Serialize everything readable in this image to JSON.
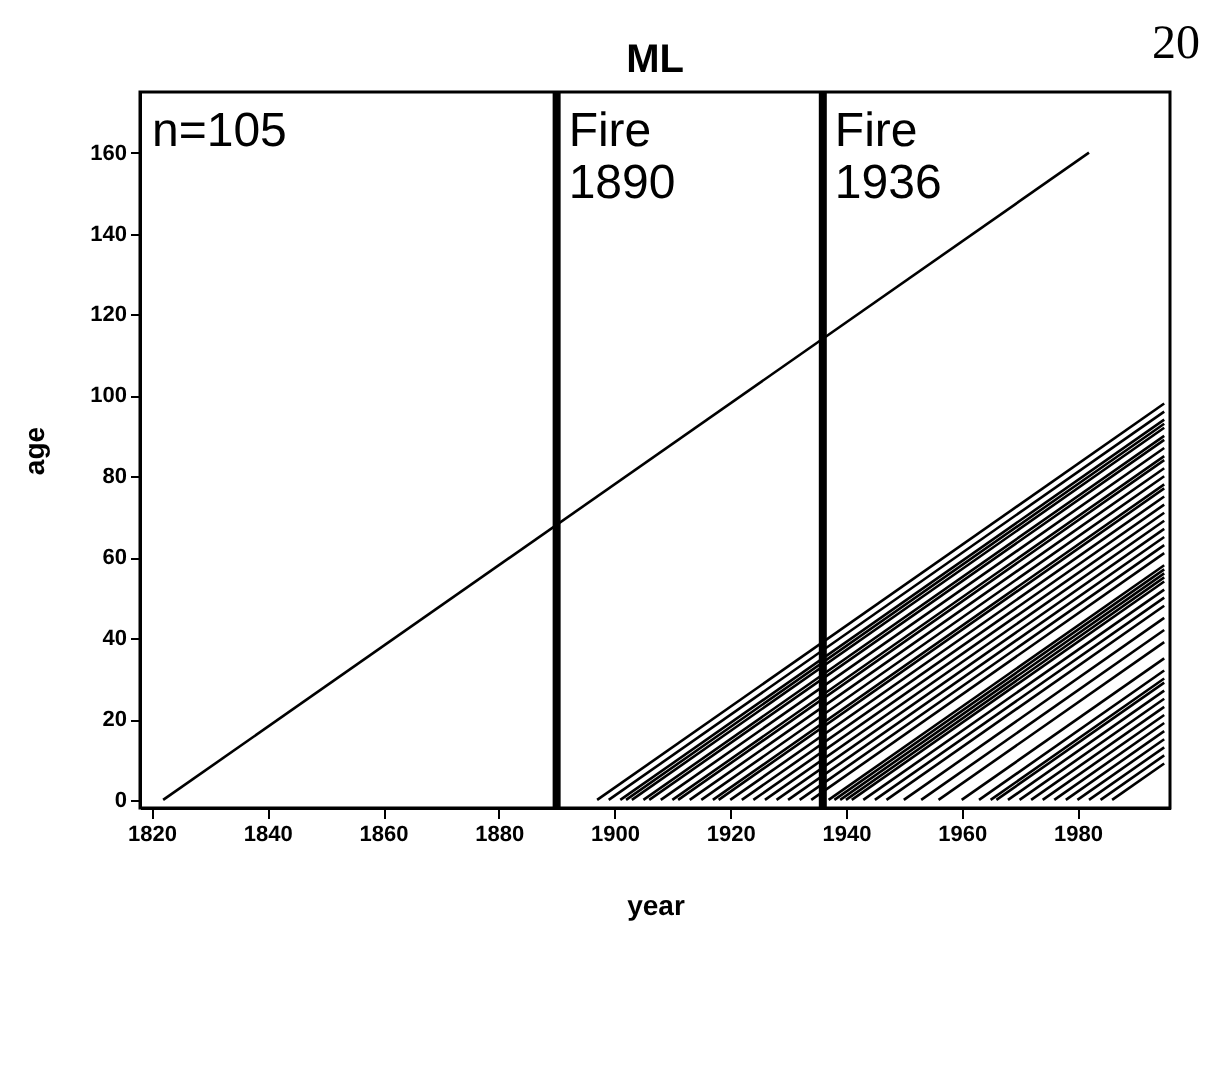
{
  "chart_data": {
    "type": "line",
    "title": "ML",
    "xlabel": "year",
    "ylabel": "age",
    "xlim": [
      1818,
      1996
    ],
    "ylim": [
      -2,
      175
    ],
    "xticks": [
      1820,
      1840,
      1860,
      1880,
      1900,
      1920,
      1940,
      1960,
      1980
    ],
    "yticks": [
      0,
      20,
      40,
      60,
      80,
      100,
      120,
      140,
      160
    ],
    "grid": false,
    "legend": false,
    "marker": "none",
    "line_style": "solid",
    "annotations": [
      "n=105",
      "20"
    ],
    "ref_lines": [
      {
        "axis": "x",
        "value": 1890,
        "label": "Fire 1890",
        "color": "#000000"
      },
      {
        "axis": "x",
        "value": 1936,
        "label": "Fire 1936",
        "color": "#000000"
      }
    ],
    "series": [
      {
        "color": "#000000",
        "x": [
          1822,
          1982
        ],
        "values": [
          0,
          160
        ]
      },
      {
        "color": "#000000",
        "x": [
          1897,
          1995
        ],
        "values": [
          0,
          98
        ]
      },
      {
        "color": "#000000",
        "x": [
          1899,
          1995
        ],
        "values": [
          0,
          96
        ]
      },
      {
        "color": "#000000",
        "x": [
          1901,
          1995
        ],
        "values": [
          0,
          94
        ]
      },
      {
        "color": "#000000",
        "x": [
          1902,
          1995
        ],
        "values": [
          0,
          93
        ]
      },
      {
        "color": "#000000",
        "x": [
          1903,
          1995
        ],
        "values": [
          0,
          92
        ]
      },
      {
        "color": "#000000",
        "x": [
          1905,
          1995
        ],
        "values": [
          0,
          90
        ]
      },
      {
        "color": "#000000",
        "x": [
          1906,
          1995
        ],
        "values": [
          0,
          89
        ]
      },
      {
        "color": "#000000",
        "x": [
          1908,
          1995
        ],
        "values": [
          0,
          87
        ]
      },
      {
        "color": "#000000",
        "x": [
          1910,
          1995
        ],
        "values": [
          0,
          85
        ]
      },
      {
        "color": "#000000",
        "x": [
          1911,
          1995
        ],
        "values": [
          0,
          84
        ]
      },
      {
        "color": "#000000",
        "x": [
          1913,
          1995
        ],
        "values": [
          0,
          82
        ]
      },
      {
        "color": "#000000",
        "x": [
          1915,
          1995
        ],
        "values": [
          0,
          80
        ]
      },
      {
        "color": "#000000",
        "x": [
          1917,
          1995
        ],
        "values": [
          0,
          78
        ]
      },
      {
        "color": "#000000",
        "x": [
          1918,
          1995
        ],
        "values": [
          0,
          77
        ]
      },
      {
        "color": "#000000",
        "x": [
          1920,
          1995
        ],
        "values": [
          0,
          75
        ]
      },
      {
        "color": "#000000",
        "x": [
          1922,
          1995
        ],
        "values": [
          0,
          73
        ]
      },
      {
        "color": "#000000",
        "x": [
          1924,
          1995
        ],
        "values": [
          0,
          71
        ]
      },
      {
        "color": "#000000",
        "x": [
          1926,
          1995
        ],
        "values": [
          0,
          69
        ]
      },
      {
        "color": "#000000",
        "x": [
          1928,
          1995
        ],
        "values": [
          0,
          67
        ]
      },
      {
        "color": "#000000",
        "x": [
          1930,
          1995
        ],
        "values": [
          0,
          65
        ]
      },
      {
        "color": "#000000",
        "x": [
          1932,
          1995
        ],
        "values": [
          0,
          63
        ]
      },
      {
        "color": "#000000",
        "x": [
          1934,
          1995
        ],
        "values": [
          0,
          61
        ]
      },
      {
        "color": "#000000",
        "x": [
          1937,
          1995
        ],
        "values": [
          0,
          58
        ]
      },
      {
        "color": "#000000",
        "x": [
          1938,
          1995
        ],
        "values": [
          0,
          57
        ]
      },
      {
        "color": "#000000",
        "x": [
          1939,
          1995
        ],
        "values": [
          0,
          56
        ]
      },
      {
        "color": "#000000",
        "x": [
          1940,
          1995
        ],
        "values": [
          0,
          55
        ]
      },
      {
        "color": "#000000",
        "x": [
          1941,
          1995
        ],
        "values": [
          0,
          54
        ]
      },
      {
        "color": "#000000",
        "x": [
          1943,
          1995
        ],
        "values": [
          0,
          52
        ]
      },
      {
        "color": "#000000",
        "x": [
          1945,
          1995
        ],
        "values": [
          0,
          50
        ]
      },
      {
        "color": "#000000",
        "x": [
          1947,
          1995
        ],
        "values": [
          0,
          48
        ]
      },
      {
        "color": "#000000",
        "x": [
          1950,
          1995
        ],
        "values": [
          0,
          45
        ]
      },
      {
        "color": "#000000",
        "x": [
          1953,
          1995
        ],
        "values": [
          0,
          42
        ]
      },
      {
        "color": "#000000",
        "x": [
          1956,
          1995
        ],
        "values": [
          0,
          39
        ]
      },
      {
        "color": "#000000",
        "x": [
          1960,
          1995
        ],
        "values": [
          0,
          35
        ]
      },
      {
        "color": "#000000",
        "x": [
          1963,
          1995
        ],
        "values": [
          0,
          32
        ]
      },
      {
        "color": "#000000",
        "x": [
          1965,
          1995
        ],
        "values": [
          0,
          30
        ]
      },
      {
        "color": "#000000",
        "x": [
          1966,
          1995
        ],
        "values": [
          0,
          29
        ]
      },
      {
        "color": "#000000",
        "x": [
          1968,
          1995
        ],
        "values": [
          0,
          27
        ]
      },
      {
        "color": "#000000",
        "x": [
          1970,
          1995
        ],
        "values": [
          0,
          25
        ]
      },
      {
        "color": "#000000",
        "x": [
          1972,
          1995
        ],
        "values": [
          0,
          23
        ]
      },
      {
        "color": "#000000",
        "x": [
          1974,
          1995
        ],
        "values": [
          0,
          21
        ]
      },
      {
        "color": "#000000",
        "x": [
          1976,
          1995
        ],
        "values": [
          0,
          19
        ]
      },
      {
        "color": "#000000",
        "x": [
          1978,
          1995
        ],
        "values": [
          0,
          17
        ]
      },
      {
        "color": "#000000",
        "x": [
          1980,
          1995
        ],
        "values": [
          0,
          15
        ]
      },
      {
        "color": "#000000",
        "x": [
          1982,
          1995
        ],
        "values": [
          0,
          13
        ]
      },
      {
        "color": "#000000",
        "x": [
          1984,
          1995
        ],
        "values": [
          0,
          11
        ]
      },
      {
        "color": "#000000",
        "x": [
          1986,
          1995
        ],
        "values": [
          0,
          9
        ]
      }
    ]
  }
}
